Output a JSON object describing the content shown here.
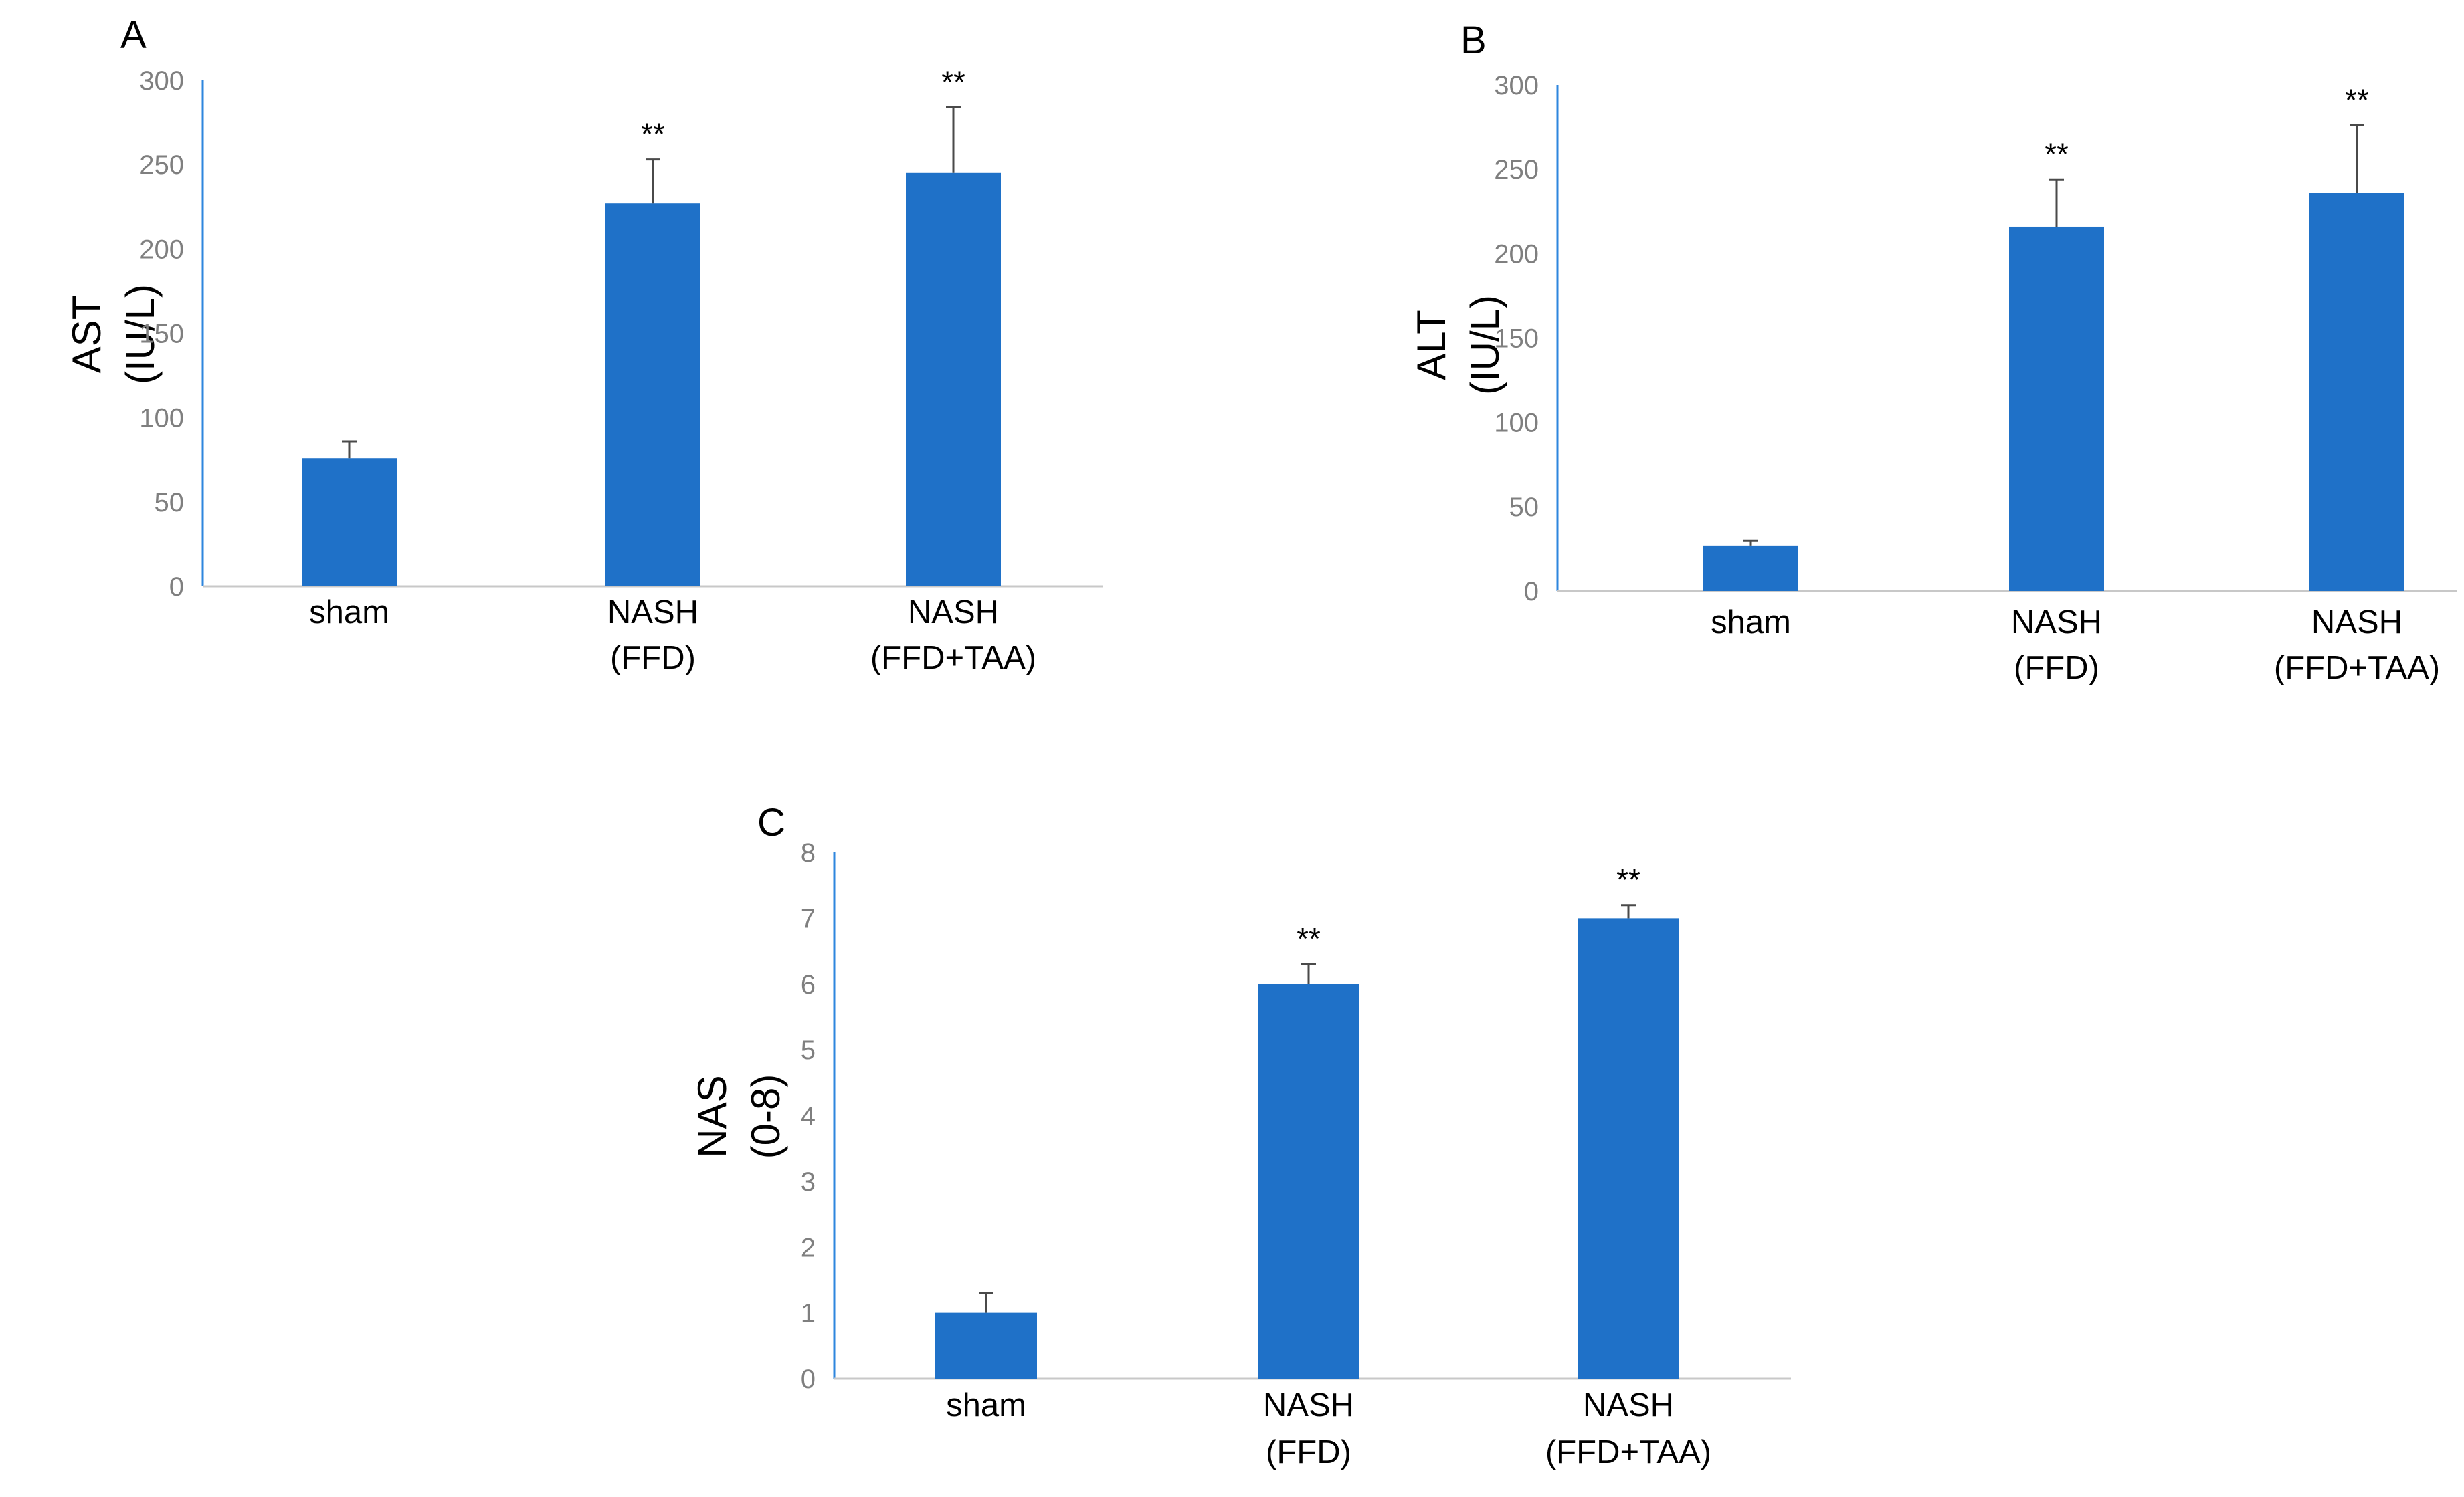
{
  "figure": {
    "colors": {
      "bar": "#1f71c8",
      "axis_y": "#2e86de",
      "axis_x": "#c8c8c8",
      "error": "#4a4a4a",
      "tick": "#7f7f7f"
    }
  },
  "chart_data": [
    {
      "panel": "A",
      "type": "bar",
      "categories": [
        "sham",
        "NASH\n(FFD)",
        "NASH\n(FFD+TAA)"
      ],
      "values": [
        76,
        227,
        245
      ],
      "errors": [
        10,
        26,
        39
      ],
      "significance": [
        "",
        "**",
        "**"
      ],
      "ylabel_lines": [
        "AST",
        "(IU/L)"
      ],
      "ylim": [
        0,
        300
      ],
      "yticks": [
        0,
        50,
        100,
        150,
        200,
        250,
        300
      ],
      "grid": false,
      "legend": "none"
    },
    {
      "panel": "B",
      "type": "bar",
      "categories": [
        "sham",
        "NASH\n(FFD)",
        "NASH\n(FFD+TAA)"
      ],
      "values": [
        27,
        216,
        236
      ],
      "errors": [
        3,
        28,
        40
      ],
      "significance": [
        "",
        "**",
        "**"
      ],
      "ylabel_lines": [
        "ALT",
        "(IU/L)"
      ],
      "ylim": [
        0,
        300
      ],
      "yticks": [
        0,
        50,
        100,
        150,
        200,
        250,
        300
      ],
      "grid": false,
      "legend": "none"
    },
    {
      "panel": "C",
      "type": "bar",
      "categories": [
        "sham",
        "NASH\n(FFD)",
        "NASH\n(FFD+TAA)"
      ],
      "values": [
        1.0,
        6.0,
        7.0
      ],
      "errors": [
        0.3,
        0.3,
        0.2
      ],
      "significance": [
        "",
        "**",
        "**"
      ],
      "ylabel_lines": [
        "NAS",
        "(0-8)"
      ],
      "ylim": [
        0,
        8
      ],
      "yticks": [
        0,
        1,
        2,
        3,
        4,
        5,
        6,
        7,
        8
      ],
      "grid": false,
      "legend": "none"
    }
  ]
}
